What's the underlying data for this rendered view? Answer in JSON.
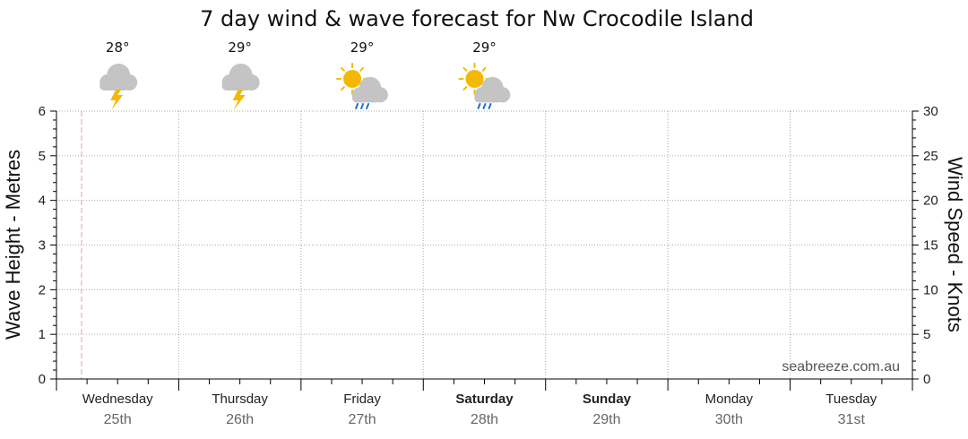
{
  "chart_data": {
    "type": "line",
    "title": "7 day wind & wave forecast for Nw Crocodile Island",
    "ylabel_left": "Wave Height - Metres",
    "ylabel_right": "Wind Speed - Knots",
    "ylim_left": [
      0,
      6
    ],
    "ylim_right": [
      0,
      30
    ],
    "yticks_left": [
      "0",
      "1",
      "2",
      "3",
      "4",
      "5",
      "6"
    ],
    "yticks_right": [
      "0",
      "5",
      "10",
      "15",
      "20",
      "25",
      "30"
    ],
    "grid": true,
    "days": [
      {
        "day": "Wednesday",
        "date": "25th",
        "bold": false
      },
      {
        "day": "Thursday",
        "date": "26th",
        "bold": false
      },
      {
        "day": "Friday",
        "date": "27th",
        "bold": false
      },
      {
        "day": "Saturday",
        "date": "28th",
        "bold": true
      },
      {
        "day": "Sunday",
        "date": "29th",
        "bold": true
      },
      {
        "day": "Monday",
        "date": "30th",
        "bold": false
      },
      {
        "day": "Tuesday",
        "date": "31st",
        "bold": false
      }
    ],
    "forecast": [
      {
        "temp": "28°",
        "icon": "storm-cloud-icon"
      },
      {
        "temp": "29°",
        "icon": "storm-cloud-icon"
      },
      {
        "temp": "29°",
        "icon": "sun-cloud-rain-icon"
      },
      {
        "temp": "29°",
        "icon": "sun-cloud-rain-icon"
      }
    ],
    "series": [],
    "watermark": "seabreeze.com.au",
    "colors": {
      "grid": "#aaaaaa",
      "now_line": "#e8a0a0",
      "cloud": "#c4c4c4",
      "sun": "#f5b800",
      "bolt": "#f5b800",
      "rain": "#1a6fdf"
    }
  }
}
